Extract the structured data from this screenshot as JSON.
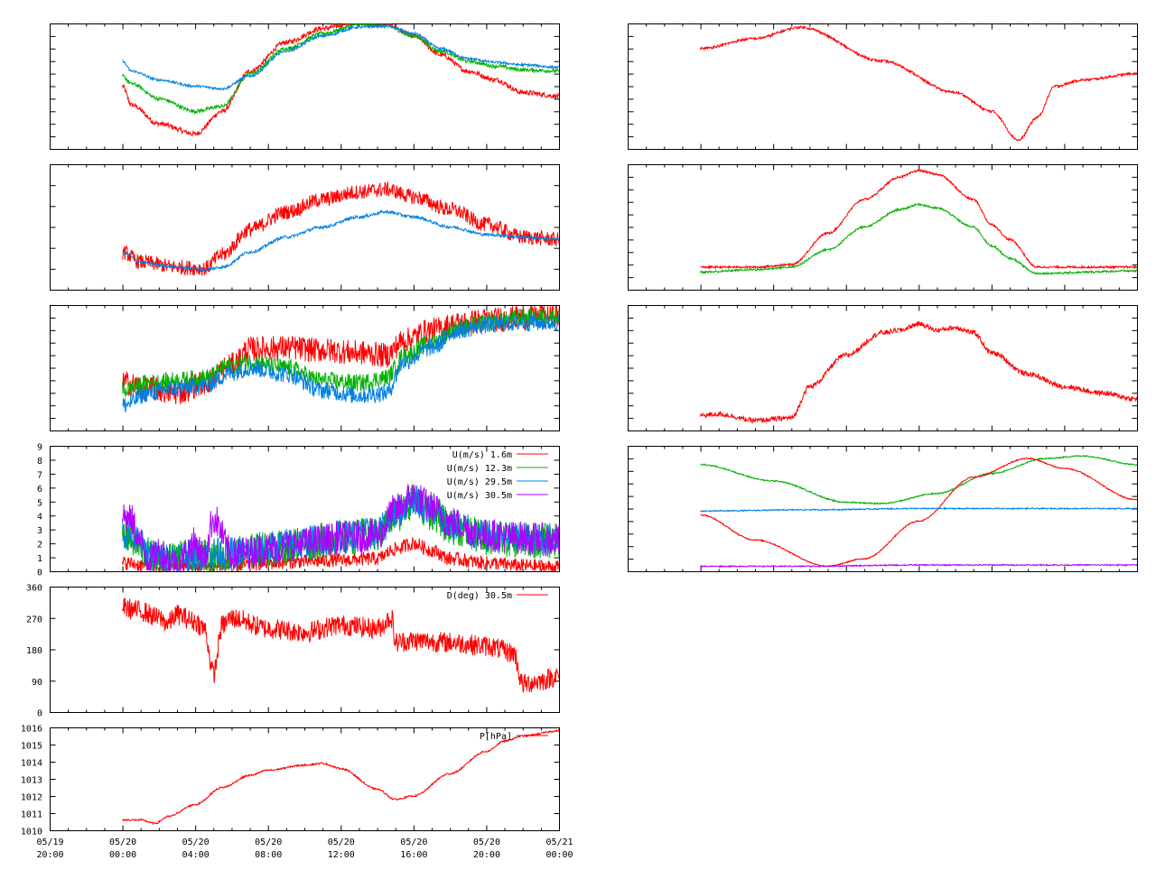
{
  "time_axis": {
    "start": "05/19 20:00",
    "end": "05/21 00:00",
    "tick_labels": [
      [
        "05/19",
        "20:00"
      ],
      [
        "05/20",
        "00:00"
      ],
      [
        "05/20",
        "04:00"
      ],
      [
        "05/20",
        "08:00"
      ],
      [
        "05/20",
        "12:00"
      ],
      [
        "05/20",
        "16:00"
      ],
      [
        "05/20",
        "20:00"
      ],
      [
        "05/21",
        "00:00"
      ]
    ],
    "data_start": "05/20 00:00"
  },
  "colors": {
    "red": "#ff0000",
    "green": "#00b000",
    "blue": "#0080e0",
    "purple": "#b000ff"
  },
  "chart_data": [
    {
      "type": "line",
      "panel": "left-1",
      "xlabel": "",
      "ylabel": "",
      "series": [
        {
          "color": "red",
          "x_hours": [
            0,
            0.5,
            2,
            4,
            5.5,
            7,
            9,
            11,
            13,
            14.5,
            16,
            17.5,
            19,
            20.5,
            22,
            24
          ],
          "values": [
            0.5,
            0.35,
            0.2,
            0.12,
            0.3,
            0.62,
            0.85,
            0.96,
            1.02,
            1.0,
            0.9,
            0.75,
            0.62,
            0.55,
            0.45,
            0.42
          ],
          "noise": 0.02
        },
        {
          "color": "green",
          "x_hours": [
            0,
            0.5,
            2,
            4,
            5.5,
            7,
            9,
            11,
            13,
            14.5,
            16,
            17.5,
            19,
            20.5,
            22,
            24
          ],
          "values": [
            0.58,
            0.52,
            0.4,
            0.3,
            0.34,
            0.6,
            0.8,
            0.92,
            0.99,
            0.98,
            0.9,
            0.78,
            0.7,
            0.66,
            0.63,
            0.62
          ],
          "noise": 0.015
        },
        {
          "color": "blue",
          "x_hours": [
            0,
            0.5,
            2,
            4,
            5.5,
            7,
            9,
            11,
            13,
            14.5,
            16,
            17.5,
            19,
            20.5,
            22,
            24
          ],
          "values": [
            0.7,
            0.62,
            0.55,
            0.5,
            0.48,
            0.58,
            0.78,
            0.9,
            0.97,
            0.98,
            0.92,
            0.8,
            0.72,
            0.69,
            0.67,
            0.65
          ],
          "noise": 0.01
        }
      ]
    },
    {
      "type": "line",
      "panel": "left-2",
      "xlabel": "",
      "ylabel": "",
      "series": [
        {
          "color": "red",
          "x_hours": [
            0,
            1,
            3,
            4.5,
            5.5,
            7,
            9,
            11,
            13,
            14.5,
            16,
            18,
            20,
            22,
            24
          ],
          "values": [
            0.3,
            0.22,
            0.18,
            0.17,
            0.28,
            0.48,
            0.62,
            0.72,
            0.78,
            0.8,
            0.74,
            0.64,
            0.52,
            0.42,
            0.4
          ],
          "noise": 0.06
        },
        {
          "color": "blue",
          "x_hours": [
            0,
            1,
            3,
            4.5,
            5.5,
            7,
            9,
            11,
            13,
            14.5,
            16,
            18,
            20,
            22,
            24
          ],
          "values": [
            0.3,
            0.22,
            0.18,
            0.16,
            0.18,
            0.3,
            0.42,
            0.5,
            0.58,
            0.62,
            0.58,
            0.5,
            0.44,
            0.42,
            0.4
          ],
          "noise": 0.012
        }
      ]
    },
    {
      "type": "line",
      "panel": "left-3",
      "xlabel": "",
      "ylabel": "",
      "series": [
        {
          "color": "red",
          "x_hours": [
            0,
            1.5,
            3,
            4.5,
            6,
            7,
            9,
            11,
            13,
            14.5,
            15.5,
            17,
            18.5,
            20,
            22,
            24
          ],
          "values": [
            0.38,
            0.33,
            0.3,
            0.38,
            0.52,
            0.65,
            0.66,
            0.64,
            0.62,
            0.6,
            0.72,
            0.8,
            0.85,
            0.88,
            0.9,
            0.92
          ],
          "noise": 0.1
        },
        {
          "color": "green",
          "x_hours": [
            0,
            1.5,
            3,
            4.5,
            6,
            7,
            9,
            11,
            13,
            14.5,
            15.5,
            17,
            18.5,
            20,
            22,
            24
          ],
          "values": [
            0.32,
            0.38,
            0.4,
            0.42,
            0.52,
            0.55,
            0.5,
            0.4,
            0.38,
            0.42,
            0.6,
            0.7,
            0.82,
            0.86,
            0.9,
            0.91
          ],
          "noise": 0.07
        },
        {
          "color": "blue",
          "x_hours": [
            0,
            1.5,
            3,
            4.5,
            6,
            7,
            9,
            11,
            13,
            14.5,
            15.5,
            17,
            18.5,
            20,
            22,
            24
          ],
          "values": [
            0.2,
            0.3,
            0.34,
            0.36,
            0.46,
            0.5,
            0.45,
            0.32,
            0.28,
            0.3,
            0.55,
            0.66,
            0.8,
            0.84,
            0.86,
            0.86
          ],
          "noise": 0.07
        }
      ]
    },
    {
      "type": "line",
      "panel": "left-4",
      "ylim": [
        0,
        9
      ],
      "yticks": [
        "0",
        "1",
        "2",
        "3",
        "4",
        "5",
        "6",
        "7",
        "8",
        "9"
      ],
      "legend": "top-right",
      "series": [
        {
          "name": "U(m/s)  1.6m",
          "color": "red",
          "x_hours": [
            0,
            2,
            4,
            6,
            8,
            10,
            12,
            14,
            15,
            16,
            17,
            18,
            20,
            22,
            24
          ],
          "values": [
            0.6,
            0.3,
            0.3,
            0.4,
            0.6,
            0.7,
            0.8,
            0.9,
            1.6,
            2.0,
            1.5,
            0.9,
            0.6,
            0.4,
            0.3
          ],
          "noise": 0.5
        },
        {
          "name": "U(m/s) 12.3m",
          "color": "green",
          "x_hours": [
            0,
            2,
            4,
            6,
            8,
            10,
            12,
            14,
            15,
            16,
            17,
            18,
            20,
            22,
            24
          ],
          "values": [
            2.6,
            0.8,
            1.0,
            1.2,
            1.6,
            2.0,
            2.4,
            2.6,
            4.0,
            5.0,
            4.2,
            3.2,
            2.4,
            2.2,
            2.2
          ],
          "noise": 1.3
        },
        {
          "name": "U(m/s) 29.5m",
          "color": "blue",
          "x_hours": [
            0,
            2,
            4,
            6,
            8,
            10,
            12,
            14,
            15,
            16,
            17,
            18,
            20,
            22,
            24
          ],
          "values": [
            2.8,
            1.0,
            1.2,
            1.3,
            1.7,
            2.1,
            2.5,
            2.7,
            4.2,
            5.2,
            4.4,
            3.3,
            2.5,
            2.3,
            2.3
          ],
          "noise": 1.2
        },
        {
          "name": "U(m/s) 30.5m",
          "color": "purple",
          "x_hours": [
            0,
            0.5,
            1,
            1.5,
            2,
            3,
            4,
            4.5,
            5,
            6,
            8,
            10,
            12,
            14,
            15,
            16,
            17,
            18,
            20,
            22,
            24
          ],
          "values": [
            4.0,
            3.6,
            2.0,
            0.8,
            1.4,
            0.5,
            2.0,
            1.0,
            3.8,
            1.2,
            1.6,
            2.0,
            2.4,
            2.6,
            4.4,
            5.4,
            4.6,
            3.5,
            2.6,
            2.4,
            2.2
          ],
          "noise": 1.2
        }
      ]
    },
    {
      "type": "line",
      "panel": "left-5",
      "ylim": [
        0,
        360
      ],
      "yticks": [
        "0",
        "90",
        "180",
        "270",
        "360"
      ],
      "legend": "top-right",
      "series": [
        {
          "name": "D(deg)  30.5m",
          "color": "red",
          "x_hours": [
            0,
            1,
            2,
            2.5,
            3,
            4,
            4.5,
            5,
            5.5,
            6,
            8,
            10,
            12,
            14,
            14.8,
            15,
            16,
            18,
            20,
            21.5,
            22,
            23,
            24
          ],
          "values": [
            300,
            290,
            270,
            255,
            280,
            260,
            240,
            110,
            250,
            270,
            240,
            230,
            250,
            240,
            270,
            200,
            205,
            200,
            190,
            170,
            80,
            90,
            105
          ],
          "noise": 30
        }
      ]
    },
    {
      "type": "line",
      "panel": "left-6",
      "ylim": [
        1010,
        1016
      ],
      "yticks": [
        "1010",
        "1011",
        "1012",
        "1013",
        "1014",
        "1015",
        "1016"
      ],
      "legend": "top-right",
      "series": [
        {
          "name": "P[hPa]",
          "color": "red",
          "x_hours": [
            0,
            1,
            1.8,
            2.5,
            4,
            5.5,
            7,
            8,
            10,
            11,
            12,
            14,
            15,
            16,
            18,
            20,
            21,
            22,
            24
          ],
          "values": [
            1010.6,
            1010.6,
            1010.4,
            1010.8,
            1011.5,
            1012.5,
            1013.2,
            1013.5,
            1013.8,
            1013.9,
            1013.6,
            1012.4,
            1011.8,
            1012.0,
            1013.3,
            1014.6,
            1015.2,
            1015.5,
            1015.8
          ],
          "noise": 0.05
        }
      ]
    },
    {
      "type": "line",
      "panel": "right-1",
      "series": [
        {
          "color": "red",
          "x_hours": [
            0,
            3,
            5.5,
            10,
            14,
            16,
            17.5,
            18.5,
            19.5,
            21,
            24
          ],
          "values": [
            0.8,
            0.88,
            0.97,
            0.7,
            0.45,
            0.3,
            0.07,
            0.25,
            0.5,
            0.55,
            0.6
          ],
          "noise": 0.01
        }
      ]
    },
    {
      "type": "line",
      "panel": "right-2",
      "series": [
        {
          "color": "red",
          "x_hours": [
            0,
            3,
            5,
            7,
            9,
            11,
            12,
            13,
            15,
            16,
            17,
            18.5,
            24
          ],
          "values": [
            0.18,
            0.18,
            0.2,
            0.45,
            0.72,
            0.9,
            0.95,
            0.92,
            0.72,
            0.52,
            0.4,
            0.18,
            0.18
          ],
          "noise": 0.008
        },
        {
          "color": "green",
          "x_hours": [
            0,
            3,
            5,
            7,
            9,
            11,
            12,
            13,
            15,
            16,
            17,
            18.5,
            24
          ],
          "values": [
            0.14,
            0.16,
            0.18,
            0.32,
            0.5,
            0.64,
            0.68,
            0.65,
            0.5,
            0.35,
            0.25,
            0.13,
            0.15
          ],
          "noise": 0.008
        }
      ]
    },
    {
      "type": "line",
      "panel": "right-3",
      "series": [
        {
          "color": "red",
          "x_hours": [
            0,
            1,
            3,
            5,
            6,
            8,
            10,
            11,
            12,
            13,
            14,
            15,
            16,
            18,
            20,
            22,
            24
          ],
          "values": [
            0.12,
            0.13,
            0.08,
            0.1,
            0.35,
            0.6,
            0.78,
            0.8,
            0.85,
            0.8,
            0.82,
            0.78,
            0.62,
            0.45,
            0.35,
            0.3,
            0.25
          ],
          "noise": 0.02
        }
      ]
    },
    {
      "type": "line",
      "panel": "right-4",
      "series": [
        {
          "color": "green",
          "x_hours": [
            0,
            4,
            8,
            10,
            13,
            16,
            19,
            21,
            24
          ],
          "values": [
            0.85,
            0.72,
            0.55,
            0.54,
            0.62,
            0.78,
            0.9,
            0.92,
            0.85
          ],
          "noise": 0.005
        },
        {
          "color": "red",
          "x_hours": [
            0,
            3,
            7,
            9,
            12,
            15,
            18,
            20,
            24
          ],
          "values": [
            0.45,
            0.25,
            0.04,
            0.1,
            0.4,
            0.75,
            0.9,
            0.82,
            0.57
          ],
          "noise": 0.005
        },
        {
          "color": "blue",
          "x_hours": [
            0,
            6,
            12,
            18,
            24
          ],
          "values": [
            0.48,
            0.49,
            0.5,
            0.5,
            0.5
          ],
          "noise": 0.005
        },
        {
          "color": "purple",
          "x_hours": [
            0,
            6,
            12,
            18,
            24
          ],
          "values": [
            0.04,
            0.04,
            0.05,
            0.05,
            0.05
          ],
          "noise": 0.005
        }
      ]
    }
  ]
}
